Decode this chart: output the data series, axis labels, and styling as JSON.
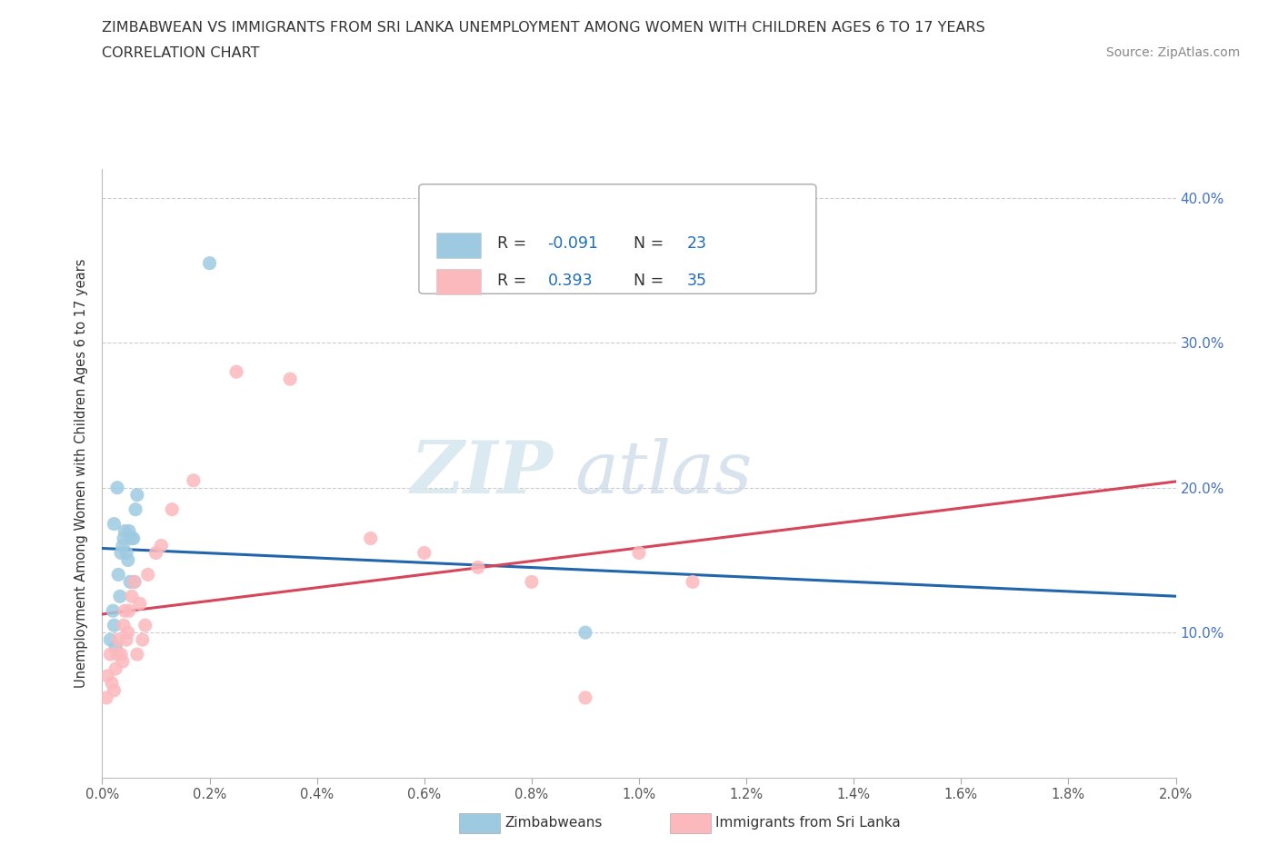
{
  "title_line1": "ZIMBABWEAN VS IMMIGRANTS FROM SRI LANKA UNEMPLOYMENT AMONG WOMEN WITH CHILDREN AGES 6 TO 17 YEARS",
  "title_line2": "CORRELATION CHART",
  "source_text": "Source: ZipAtlas.com",
  "ylabel": "Unemployment Among Women with Children Ages 6 to 17 years",
  "xlim": [
    0.0,
    0.02
  ],
  "ylim": [
    0.0,
    0.42
  ],
  "xtick_labels": [
    "0.0%",
    "0.2%",
    "0.4%",
    "0.6%",
    "0.8%",
    "1.0%",
    "1.2%",
    "1.4%",
    "1.6%",
    "1.8%",
    "2.0%"
  ],
  "xtick_vals": [
    0.0,
    0.002,
    0.004,
    0.006,
    0.008,
    0.01,
    0.012,
    0.014,
    0.016,
    0.018,
    0.02
  ],
  "ytick_labels": [
    "10.0%",
    "20.0%",
    "30.0%",
    "40.0%"
  ],
  "ytick_vals": [
    0.1,
    0.2,
    0.3,
    0.4
  ],
  "legend_label1": "Zimbabweans",
  "legend_label2": "Immigrants from Sri Lanka",
  "r1": "-0.091",
  "n1": "23",
  "r2": "0.393",
  "n2": "35",
  "color1": "#9ecae1",
  "color2": "#fcb9bd",
  "line_color1": "#2166ac",
  "line_color2": "#d6455a",
  "watermark_zip": "ZIP",
  "watermark_atlas": "atlas",
  "zimbabwe_x": [
    0.00015,
    0.0002,
    0.00022,
    0.00025,
    0.0003,
    0.00033,
    0.00035,
    0.00038,
    0.0004,
    0.00042,
    0.00045,
    0.00048,
    0.0005,
    0.00052,
    0.00055,
    0.00058,
    0.0006,
    0.00062,
    0.00065,
    0.00022,
    0.00028,
    0.002,
    0.009
  ],
  "zimbabwe_y": [
    0.095,
    0.115,
    0.105,
    0.09,
    0.14,
    0.125,
    0.155,
    0.16,
    0.165,
    0.17,
    0.155,
    0.15,
    0.17,
    0.135,
    0.165,
    0.165,
    0.135,
    0.185,
    0.195,
    0.175,
    0.2,
    0.355,
    0.1
  ],
  "srilanka_x": [
    8e-05,
    0.0001,
    0.00015,
    0.00018,
    0.00022,
    0.00025,
    0.00028,
    0.0003,
    0.00035,
    0.00038,
    0.0004,
    0.00042,
    0.00045,
    0.00048,
    0.0005,
    0.00055,
    0.0006,
    0.00065,
    0.0007,
    0.00075,
    0.0008,
    0.00085,
    0.001,
    0.0011,
    0.0013,
    0.0017,
    0.0025,
    0.0035,
    0.005,
    0.006,
    0.007,
    0.008,
    0.009,
    0.01,
    0.011
  ],
  "srilanka_y": [
    0.055,
    0.07,
    0.085,
    0.065,
    0.06,
    0.075,
    0.085,
    0.095,
    0.085,
    0.08,
    0.105,
    0.115,
    0.095,
    0.1,
    0.115,
    0.125,
    0.135,
    0.085,
    0.12,
    0.095,
    0.105,
    0.14,
    0.155,
    0.16,
    0.185,
    0.205,
    0.28,
    0.275,
    0.165,
    0.155,
    0.145,
    0.135,
    0.055,
    0.155,
    0.135
  ]
}
